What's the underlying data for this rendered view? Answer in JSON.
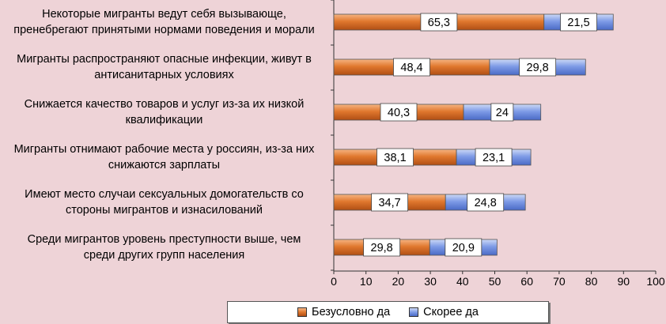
{
  "chart_data": {
    "type": "bar",
    "orientation": "horizontal",
    "stacked": true,
    "categories": [
      "Некоторые мигранты ведут себя вызывающе,\nпренебрегают принятыми нормами поведения и морали",
      "Мигранты распространяют опасные инфекции, живут в\nантисанитарных условиях",
      "Снижается качество товаров и услуг из-за их низкой\nквалификации",
      "Мигранты отнимают рабочие места у россиян, из-за них\nснижаются зарплаты",
      "Имеют место случаи сексуальных домогательств со\nстороны мигрантов и изнасилований",
      "Среди мигрантов уровень преступности выше, чем\nсреди других групп населения"
    ],
    "series": [
      {
        "name": "Безусловно да",
        "values": [
          65.3,
          48.4,
          40.3,
          38.1,
          34.7,
          29.8
        ],
        "labels": [
          "65,3",
          "48,4",
          "40,3",
          "38,1",
          "34,7",
          "29,8"
        ],
        "color": "#e0782e"
      },
      {
        "name": "Скорее да",
        "values": [
          21.5,
          29.8,
          24,
          23.1,
          24.8,
          20.9
        ],
        "labels": [
          "21,5",
          "29,8",
          "24",
          "23,1",
          "24,8",
          "20,9"
        ],
        "color": "#6e8fe0"
      }
    ],
    "xlim": [
      0,
      100
    ],
    "xticks": [
      "0",
      "10",
      "20",
      "30",
      "40",
      "50",
      "60",
      "70",
      "80",
      "90",
      "100"
    ],
    "title": "",
    "xlabel": "",
    "ylabel": "",
    "legend_position": "bottom",
    "grid": false
  }
}
